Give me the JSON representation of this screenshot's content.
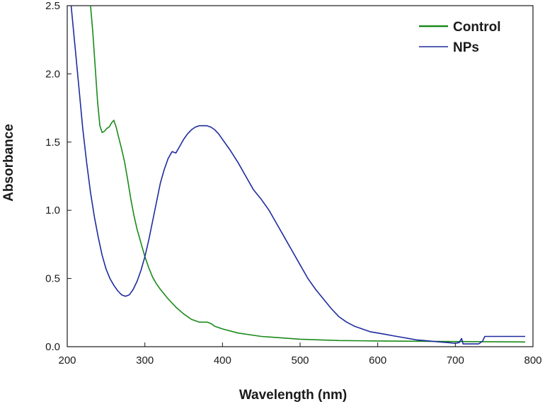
{
  "chart_data": {
    "type": "line",
    "title": "",
    "xlabel": "Wavelength (nm)",
    "ylabel": "Absorbance",
    "xlim": [
      200,
      800
    ],
    "ylim": [
      0.0,
      2.5
    ],
    "x_ticks": [
      200,
      300,
      400,
      500,
      600,
      700,
      800
    ],
    "y_ticks": [
      "0.0",
      "0.5",
      "1.0",
      "1.5",
      "2.0",
      "2.5"
    ],
    "grid": false,
    "legend_position": "top-right",
    "series": [
      {
        "name": "Control",
        "color": "#1a8a1a",
        "points": [
          [
            230,
            2.5
          ],
          [
            233,
            2.3
          ],
          [
            236,
            2.05
          ],
          [
            239,
            1.8
          ],
          [
            242,
            1.62
          ],
          [
            245,
            1.57
          ],
          [
            248,
            1.58
          ],
          [
            251,
            1.6
          ],
          [
            254,
            1.61
          ],
          [
            257,
            1.64
          ],
          [
            260,
            1.66
          ],
          [
            263,
            1.61
          ],
          [
            266,
            1.54
          ],
          [
            270,
            1.45
          ],
          [
            274,
            1.35
          ],
          [
            278,
            1.22
          ],
          [
            282,
            1.08
          ],
          [
            286,
            0.96
          ],
          [
            290,
            0.86
          ],
          [
            295,
            0.76
          ],
          [
            300,
            0.66
          ],
          [
            305,
            0.58
          ],
          [
            310,
            0.51
          ],
          [
            315,
            0.46
          ],
          [
            320,
            0.42
          ],
          [
            330,
            0.35
          ],
          [
            340,
            0.29
          ],
          [
            350,
            0.24
          ],
          [
            360,
            0.2
          ],
          [
            370,
            0.18
          ],
          [
            380,
            0.18
          ],
          [
            385,
            0.17
          ],
          [
            390,
            0.15
          ],
          [
            400,
            0.13
          ],
          [
            420,
            0.1
          ],
          [
            450,
            0.075
          ],
          [
            500,
            0.055
          ],
          [
            550,
            0.045
          ],
          [
            600,
            0.042
          ],
          [
            650,
            0.04
          ],
          [
            700,
            0.038
          ],
          [
            750,
            0.036
          ],
          [
            790,
            0.035
          ]
        ]
      },
      {
        "name": "NPs",
        "color": "#1f2b9e",
        "points": [
          [
            205,
            2.5
          ],
          [
            210,
            2.2
          ],
          [
            215,
            1.9
          ],
          [
            220,
            1.6
          ],
          [
            225,
            1.35
          ],
          [
            230,
            1.13
          ],
          [
            235,
            0.95
          ],
          [
            240,
            0.8
          ],
          [
            245,
            0.67
          ],
          [
            250,
            0.57
          ],
          [
            255,
            0.5
          ],
          [
            260,
            0.45
          ],
          [
            265,
            0.41
          ],
          [
            270,
            0.38
          ],
          [
            275,
            0.37
          ],
          [
            280,
            0.38
          ],
          [
            285,
            0.42
          ],
          [
            290,
            0.48
          ],
          [
            295,
            0.56
          ],
          [
            300,
            0.66
          ],
          [
            305,
            0.78
          ],
          [
            310,
            0.92
          ],
          [
            315,
            1.06
          ],
          [
            320,
            1.2
          ],
          [
            325,
            1.3
          ],
          [
            330,
            1.38
          ],
          [
            335,
            1.43
          ],
          [
            340,
            1.42
          ],
          [
            345,
            1.47
          ],
          [
            350,
            1.52
          ],
          [
            355,
            1.56
          ],
          [
            360,
            1.59
          ],
          [
            365,
            1.61
          ],
          [
            370,
            1.62
          ],
          [
            375,
            1.62
          ],
          [
            380,
            1.62
          ],
          [
            385,
            1.61
          ],
          [
            390,
            1.59
          ],
          [
            395,
            1.56
          ],
          [
            400,
            1.52
          ],
          [
            410,
            1.44
          ],
          [
            420,
            1.35
          ],
          [
            430,
            1.25
          ],
          [
            440,
            1.15
          ],
          [
            450,
            1.08
          ],
          [
            460,
            1.0
          ],
          [
            470,
            0.9
          ],
          [
            480,
            0.8
          ],
          [
            490,
            0.7
          ],
          [
            500,
            0.6
          ],
          [
            510,
            0.5
          ],
          [
            520,
            0.42
          ],
          [
            530,
            0.35
          ],
          [
            540,
            0.28
          ],
          [
            550,
            0.22
          ],
          [
            560,
            0.18
          ],
          [
            570,
            0.15
          ],
          [
            580,
            0.13
          ],
          [
            590,
            0.11
          ],
          [
            600,
            0.1
          ],
          [
            610,
            0.09
          ],
          [
            620,
            0.08
          ],
          [
            630,
            0.07
          ],
          [
            640,
            0.06
          ],
          [
            650,
            0.05
          ],
          [
            660,
            0.045
          ],
          [
            670,
            0.04
          ],
          [
            680,
            0.035
          ],
          [
            690,
            0.03
          ],
          [
            700,
            0.025
          ],
          [
            705,
            0.03
          ],
          [
            708,
            0.06
          ],
          [
            710,
            0.02
          ],
          [
            715,
            0.02
          ],
          [
            720,
            0.02
          ],
          [
            725,
            0.02
          ],
          [
            730,
            0.02
          ],
          [
            735,
            0.04
          ],
          [
            738,
            0.075
          ],
          [
            760,
            0.075
          ],
          [
            790,
            0.075
          ]
        ]
      }
    ]
  }
}
